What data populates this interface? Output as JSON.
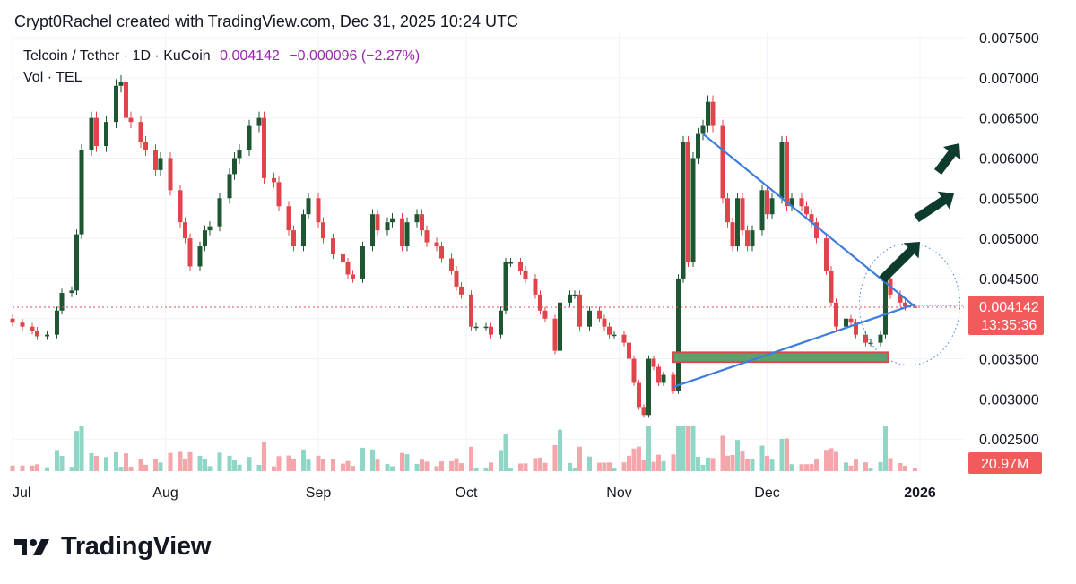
{
  "header": {
    "credit": "Crypt0Rachel created with TradingView.com, Dec 31, 2025 10:24 UTC"
  },
  "legend": {
    "symbol": "Telcoin / Tether · 1D · KuCoin",
    "last": "0.004142",
    "change": "−0.000096 (−2.27%)",
    "volume_label": "Vol · TEL"
  },
  "footer": {
    "brand": "TradingView"
  },
  "colors": {
    "up": "#1e5631",
    "down": "#e0454b",
    "vol_up": "#8fd6c6",
    "vol_down": "#f4a6ab",
    "trendline": "#3d7de0",
    "support_zone": "#5fa06a",
    "support_border": "#e0454b",
    "arrow": "#0d3b2e",
    "price_line": "#e0454b",
    "badge": "#f15b5b"
  },
  "chart_data": {
    "type": "candlestick",
    "y_axis": {
      "ticks": [
        "0.007500",
        "0.007000",
        "0.006500",
        "0.006000",
        "0.005500",
        "0.005000",
        "0.004500",
        "0.004000",
        "0.003500",
        "0.003000",
        "0.002500"
      ],
      "ylim": [
        0.0023,
        0.0075
      ]
    },
    "x_axis": {
      "labels": [
        {
          "label": "Jul",
          "date": "2025-07-01"
        },
        {
          "label": "Aug",
          "date": "2025-08-01"
        },
        {
          "label": "Sep",
          "date": "2025-09-01"
        },
        {
          "label": "Oct",
          "date": "2025-10-01"
        },
        {
          "label": "Nov",
          "date": "2025-11-01"
        },
        {
          "label": "Dec",
          "date": "2025-12-01"
        },
        {
          "label": "2026",
          "date": "2026-01-01"
        }
      ]
    },
    "last_price": "0.004142",
    "countdown": "13:35:36",
    "volume_badge": "20.97M",
    "close_series": [
      [
        "07-01",
        0.00395
      ],
      [
        "07-03",
        0.0039
      ],
      [
        "07-05",
        0.00385
      ],
      [
        "07-06",
        0.00378
      ],
      [
        "07-08",
        0.0038
      ],
      [
        "07-10",
        0.0041
      ],
      [
        "07-11",
        0.00432
      ],
      [
        "07-13",
        0.00435
      ],
      [
        "07-14",
        0.00505
      ],
      [
        "07-15",
        0.0061
      ],
      [
        "07-17",
        0.0065
      ],
      [
        "07-18",
        0.00615
      ],
      [
        "07-20",
        0.00645
      ],
      [
        "07-22",
        0.0069
      ],
      [
        "07-23",
        0.00695
      ],
      [
        "07-24",
        0.0065
      ],
      [
        "07-25",
        0.00645
      ],
      [
        "07-27",
        0.0062
      ],
      [
        "07-28",
        0.0061
      ],
      [
        "07-30",
        0.00585
      ],
      [
        "07-31",
        0.006
      ],
      [
        "08-02",
        0.0056
      ],
      [
        "08-04",
        0.0052
      ],
      [
        "08-05",
        0.005
      ],
      [
        "08-06",
        0.00465
      ],
      [
        "08-08",
        0.0049
      ],
      [
        "08-09",
        0.0051
      ],
      [
        "08-10",
        0.00515
      ],
      [
        "08-12",
        0.0055
      ],
      [
        "08-14",
        0.0058
      ],
      [
        "08-15",
        0.006
      ],
      [
        "08-16",
        0.0061
      ],
      [
        "08-18",
        0.0064
      ],
      [
        "08-20",
        0.0065
      ],
      [
        "08-21",
        0.00575
      ],
      [
        "08-23",
        0.0057
      ],
      [
        "08-24",
        0.0054
      ],
      [
        "08-26",
        0.0051
      ],
      [
        "08-27",
        0.0049
      ],
      [
        "08-29",
        0.0053
      ],
      [
        "08-30",
        0.0055
      ],
      [
        "09-01",
        0.0052
      ],
      [
        "09-02",
        0.005
      ],
      [
        "09-04",
        0.0048
      ],
      [
        "09-06",
        0.0047
      ],
      [
        "09-07",
        0.00455
      ],
      [
        "09-08",
        0.0045
      ],
      [
        "09-10",
        0.0049
      ],
      [
        "09-12",
        0.0053
      ],
      [
        "09-13",
        0.0051
      ],
      [
        "09-15",
        0.0052
      ],
      [
        "09-16",
        0.00525
      ],
      [
        "09-18",
        0.0049
      ],
      [
        "09-19",
        0.0052
      ],
      [
        "09-21",
        0.0053
      ],
      [
        "09-22",
        0.0051
      ],
      [
        "09-23",
        0.00495
      ],
      [
        "09-25",
        0.0049
      ],
      [
        "09-26",
        0.00475
      ],
      [
        "09-28",
        0.0046
      ],
      [
        "09-29",
        0.0044
      ],
      [
        "09-30",
        0.0043
      ],
      [
        "10-02",
        0.0039
      ],
      [
        "10-03",
        0.0039
      ],
      [
        "10-05",
        0.0039
      ],
      [
        "10-06",
        0.0038
      ],
      [
        "10-08",
        0.0041
      ],
      [
        "10-09",
        0.0047
      ],
      [
        "10-10",
        0.0047
      ],
      [
        "10-12",
        0.0046
      ],
      [
        "10-13",
        0.0045
      ],
      [
        "10-15",
        0.0043
      ],
      [
        "10-16",
        0.0041
      ],
      [
        "10-17",
        0.004
      ],
      [
        "10-19",
        0.0036
      ],
      [
        "10-20",
        0.0042
      ],
      [
        "10-22",
        0.0043
      ],
      [
        "10-23",
        0.0043
      ],
      [
        "10-24",
        0.0039
      ],
      [
        "10-26",
        0.0041
      ],
      [
        "10-28",
        0.004
      ],
      [
        "10-29",
        0.0039
      ],
      [
        "10-30",
        0.0038
      ],
      [
        "10-31",
        0.0038
      ],
      [
        "11-02",
        0.0037
      ],
      [
        "11-03",
        0.0035
      ],
      [
        "11-04",
        0.0032
      ],
      [
        "11-05",
        0.0029
      ],
      [
        "11-06",
        0.0028
      ],
      [
        "11-07",
        0.0035
      ],
      [
        "11-08",
        0.0034
      ],
      [
        "11-09",
        0.0032
      ],
      [
        "11-10",
        0.0033
      ],
      [
        "11-12",
        0.0031
      ],
      [
        "11-13",
        0.0045
      ],
      [
        "11-14",
        0.0062
      ],
      [
        "11-15",
        0.0047
      ],
      [
        "11-16",
        0.006
      ],
      [
        "11-17",
        0.0063
      ],
      [
        "11-18",
        0.0064
      ],
      [
        "11-19",
        0.0067
      ],
      [
        "11-20",
        0.0064
      ],
      [
        "11-22",
        0.0055
      ],
      [
        "11-23",
        0.0052
      ],
      [
        "11-24",
        0.0049
      ],
      [
        "11-25",
        0.0055
      ],
      [
        "11-26",
        0.0051
      ],
      [
        "11-27",
        0.0049
      ],
      [
        "11-28",
        0.0051
      ],
      [
        "11-30",
        0.0056
      ],
      [
        "12-01",
        0.0053
      ],
      [
        "12-02",
        0.0055
      ],
      [
        "12-04",
        0.0062
      ],
      [
        "12-05",
        0.0054
      ],
      [
        "12-06",
        0.0055
      ],
      [
        "12-08",
        0.0054
      ],
      [
        "12-09",
        0.0053
      ],
      [
        "12-10",
        0.0052
      ],
      [
        "12-11",
        0.005
      ],
      [
        "12-13",
        0.0046
      ],
      [
        "12-14",
        0.0042
      ],
      [
        "12-15",
        0.0039
      ],
      [
        "12-17",
        0.004
      ],
      [
        "12-18",
        0.00395
      ],
      [
        "12-19",
        0.0038
      ],
      [
        "12-21",
        0.0037
      ],
      [
        "12-22",
        0.0037
      ],
      [
        "12-24",
        0.0038
      ],
      [
        "12-25",
        0.0045
      ],
      [
        "12-26",
        0.0043
      ],
      [
        "12-28",
        0.0042
      ],
      [
        "12-29",
        0.00415
      ],
      [
        "12-31",
        0.004142
      ]
    ]
  }
}
